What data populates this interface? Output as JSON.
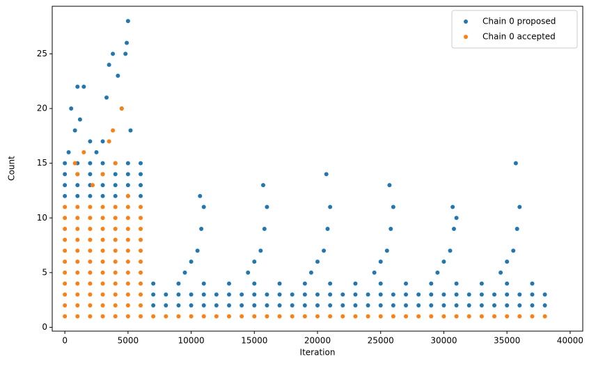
{
  "chart_data": {
    "type": "scatter",
    "xlabel": "Iteration",
    "ylabel": "Count",
    "xlim": [
      -1000,
      41000
    ],
    "ylim": [
      -0.35,
      29.35
    ],
    "xticks": [
      0,
      5000,
      10000,
      15000,
      20000,
      25000,
      30000,
      35000,
      40000
    ],
    "yticks": [
      0,
      5,
      10,
      15,
      20,
      25
    ],
    "legend": "upper right",
    "series": [
      {
        "name": "Chain 0 proposed",
        "color": "#1f77b4",
        "x": [
          0,
          1000,
          2000,
          3000,
          4000,
          5000,
          6000,
          0,
          1000,
          2000,
          3000,
          4000,
          5000,
          6000,
          0,
          1000,
          2000,
          3000,
          4000,
          5000,
          6000,
          0,
          1000,
          2000,
          3000,
          4000,
          5000,
          6000,
          300,
          500,
          800,
          1000,
          1200,
          1500,
          2000,
          2500,
          3000,
          3300,
          3500,
          3800,
          4200,
          4500,
          4800,
          4900,
          5000,
          5200,
          7000,
          8000,
          9000,
          10000,
          11000,
          12000,
          13000,
          14000,
          15000,
          16000,
          17000,
          18000,
          19000,
          20000,
          21000,
          22000,
          23000,
          24000,
          25000,
          26000,
          27000,
          28000,
          29000,
          30000,
          31000,
          32000,
          33000,
          34000,
          35000,
          36000,
          37000,
          38000,
          7000,
          8000,
          9000,
          10000,
          11000,
          12000,
          13000,
          14000,
          15000,
          16000,
          17000,
          18000,
          19000,
          20000,
          21000,
          22000,
          23000,
          24000,
          25000,
          26000,
          27000,
          28000,
          29000,
          30000,
          31000,
          32000,
          33000,
          34000,
          35000,
          36000,
          37000,
          38000,
          7000,
          9000,
          11000,
          13000,
          15000,
          17000,
          19000,
          21000,
          23000,
          25000,
          27000,
          29000,
          31000,
          33000,
          35000,
          37000,
          9500,
          10000,
          10500,
          10800,
          11000,
          10700,
          14500,
          15000,
          15500,
          15800,
          16000,
          15700,
          19500,
          20000,
          20500,
          20800,
          21000,
          20700,
          24500,
          25000,
          25500,
          25800,
          26000,
          25700,
          29500,
          30000,
          30500,
          30800,
          31000,
          30700,
          34500,
          35000,
          35500,
          35800,
          36000,
          35700
        ],
        "values": [
          12,
          12,
          12,
          12,
          12,
          12,
          12,
          13,
          13,
          13,
          13,
          13,
          13,
          13,
          14,
          14,
          14,
          14,
          14,
          14,
          14,
          15,
          15,
          15,
          15,
          15,
          15,
          15,
          16,
          20,
          18,
          22,
          19,
          22,
          17,
          16,
          17,
          21,
          24,
          25,
          23,
          20,
          25,
          26,
          28,
          18,
          2,
          2,
          2,
          2,
          2,
          2,
          2,
          2,
          2,
          2,
          2,
          2,
          2,
          2,
          2,
          2,
          2,
          2,
          2,
          2,
          2,
          2,
          2,
          2,
          2,
          2,
          2,
          2,
          2,
          2,
          2,
          2,
          3,
          3,
          3,
          3,
          3,
          3,
          3,
          3,
          3,
          3,
          3,
          3,
          3,
          3,
          3,
          3,
          3,
          3,
          3,
          3,
          3,
          3,
          3,
          3,
          3,
          3,
          3,
          3,
          3,
          3,
          3,
          3,
          4,
          4,
          4,
          4,
          4,
          4,
          4,
          4,
          4,
          4,
          4,
          4,
          4,
          4,
          4,
          4,
          5,
          6,
          7,
          9,
          11,
          12,
          5,
          6,
          7,
          9,
          11,
          13,
          5,
          6,
          7,
          9,
          11,
          14,
          5,
          6,
          7,
          9,
          11,
          13,
          5,
          6,
          7,
          9,
          10,
          11,
          5,
          6,
          7,
          9,
          11,
          15
        ]
      },
      {
        "name": "Chain 0 accepted",
        "color": "#ff7f0e",
        "x": [
          0,
          1000,
          2000,
          3000,
          4000,
          5000,
          6000,
          7000,
          8000,
          9000,
          10000,
          11000,
          12000,
          13000,
          14000,
          15000,
          16000,
          17000,
          18000,
          19000,
          20000,
          21000,
          22000,
          23000,
          24000,
          25000,
          26000,
          27000,
          28000,
          29000,
          30000,
          31000,
          32000,
          33000,
          34000,
          35000,
          36000,
          37000,
          38000,
          0,
          1000,
          2000,
          3000,
          4000,
          5000,
          6000,
          0,
          1000,
          2000,
          3000,
          4000,
          5000,
          6000,
          0,
          1000,
          2000,
          3000,
          4000,
          5000,
          6000,
          0,
          1000,
          2000,
          3000,
          4000,
          5000,
          6000,
          0,
          1000,
          2000,
          3000,
          4000,
          5000,
          6000,
          0,
          1000,
          2000,
          3000,
          4000,
          5000,
          6000,
          0,
          1000,
          2000,
          3000,
          4000,
          5000,
          6000,
          0,
          1000,
          2000,
          3000,
          4000,
          5000,
          6000,
          0,
          1000,
          2000,
          3000,
          4000,
          5000,
          6000,
          0,
          1000,
          2000,
          3000,
          4000,
          5000,
          6000,
          1500,
          1000,
          3500,
          4500,
          3800,
          2200,
          4000,
          800,
          3000,
          5000
        ],
        "values": [
          1,
          1,
          1,
          1,
          1,
          1,
          1,
          1,
          1,
          1,
          1,
          1,
          1,
          1,
          1,
          1,
          1,
          1,
          1,
          1,
          1,
          1,
          1,
          1,
          1,
          1,
          1,
          1,
          1,
          1,
          1,
          1,
          1,
          1,
          1,
          1,
          1,
          1,
          1,
          2,
          2,
          2,
          2,
          2,
          2,
          2,
          3,
          3,
          3,
          3,
          3,
          3,
          3,
          4,
          4,
          4,
          4,
          4,
          4,
          4,
          5,
          5,
          5,
          5,
          5,
          5,
          5,
          6,
          6,
          6,
          6,
          6,
          6,
          6,
          7,
          7,
          7,
          7,
          7,
          7,
          7,
          8,
          8,
          8,
          8,
          8,
          8,
          8,
          9,
          9,
          9,
          9,
          9,
          9,
          9,
          10,
          10,
          10,
          10,
          10,
          10,
          10,
          11,
          11,
          11,
          11,
          11,
          11,
          11,
          16,
          14,
          17,
          20,
          18,
          13,
          15,
          15,
          14,
          12
        ]
      }
    ]
  }
}
